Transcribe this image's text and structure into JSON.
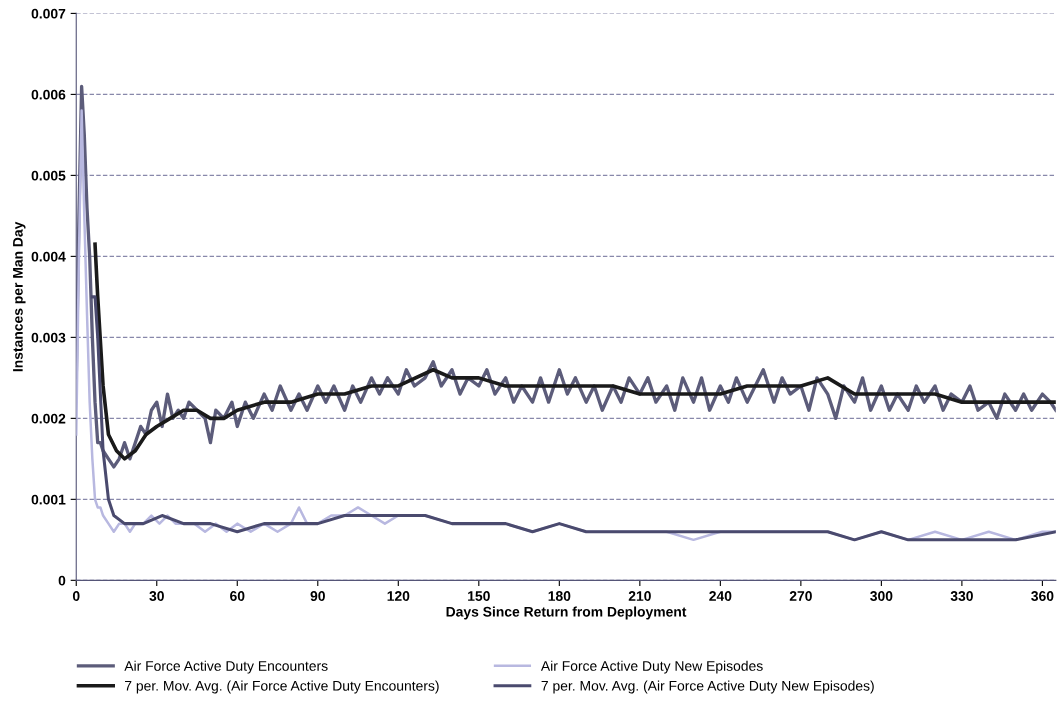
{
  "chart_data": {
    "type": "line",
    "xlabel": "Days Since Return from Deployment",
    "ylabel": "Instances per Man Day",
    "xlim": [
      0,
      365
    ],
    "xticks": [
      0,
      30,
      60,
      90,
      120,
      150,
      180,
      210,
      240,
      270,
      300,
      330,
      360
    ],
    "ylim": [
      0,
      0.007
    ],
    "yticks": [
      0,
      0.001,
      0.002,
      0.003,
      0.004,
      0.005,
      0.006,
      0.007
    ],
    "grid": "y",
    "legend": "bottom",
    "marker": "none",
    "line_style": "solid",
    "series": [
      {
        "name": "Air Force Active Duty Encounters",
        "color": "#5c5c7a",
        "x": [
          0,
          1,
          2,
          3,
          4,
          5,
          6,
          7,
          8,
          9,
          10,
          12,
          14,
          16,
          18,
          20,
          22,
          24,
          26,
          28,
          30,
          32,
          34,
          36,
          38,
          40,
          42,
          45,
          48,
          50,
          52,
          55,
          58,
          60,
          63,
          66,
          70,
          73,
          76,
          80,
          83,
          86,
          90,
          93,
          96,
          100,
          103,
          106,
          110,
          113,
          116,
          120,
          123,
          126,
          130,
          133,
          136,
          140,
          143,
          146,
          150,
          153,
          156,
          160,
          163,
          166,
          170,
          173,
          176,
          180,
          183,
          186,
          190,
          193,
          196,
          200,
          203,
          206,
          210,
          213,
          216,
          220,
          223,
          226,
          230,
          233,
          236,
          240,
          243,
          246,
          250,
          253,
          256,
          260,
          263,
          266,
          270,
          273,
          276,
          280,
          283,
          286,
          290,
          293,
          296,
          300,
          303,
          306,
          310,
          313,
          316,
          320,
          323,
          326,
          330,
          333,
          336,
          340,
          343,
          346,
          350,
          353,
          356,
          360,
          363,
          365
        ],
        "values": [
          0.0025,
          0.0045,
          0.0061,
          0.0055,
          0.0046,
          0.004,
          0.003,
          0.0022,
          0.0017,
          0.0017,
          0.0016,
          0.0015,
          0.0014,
          0.0015,
          0.0017,
          0.0015,
          0.0017,
          0.0019,
          0.0018,
          0.0021,
          0.0022,
          0.0019,
          0.0023,
          0.002,
          0.0021,
          0.002,
          0.0022,
          0.0021,
          0.002,
          0.0017,
          0.0021,
          0.002,
          0.0022,
          0.0019,
          0.0022,
          0.002,
          0.0023,
          0.0021,
          0.0024,
          0.0021,
          0.0023,
          0.0021,
          0.0024,
          0.0022,
          0.0024,
          0.0021,
          0.0024,
          0.0022,
          0.0025,
          0.0023,
          0.0025,
          0.0023,
          0.0026,
          0.0024,
          0.0025,
          0.0027,
          0.0024,
          0.0026,
          0.0023,
          0.0025,
          0.0024,
          0.0026,
          0.0023,
          0.0025,
          0.0022,
          0.0024,
          0.0022,
          0.0025,
          0.0022,
          0.0026,
          0.0023,
          0.0025,
          0.0022,
          0.0024,
          0.0021,
          0.0024,
          0.0022,
          0.0025,
          0.0023,
          0.0025,
          0.0022,
          0.0024,
          0.0021,
          0.0025,
          0.0022,
          0.0025,
          0.0021,
          0.0024,
          0.0022,
          0.0025,
          0.0022,
          0.0024,
          0.0026,
          0.0022,
          0.0025,
          0.0023,
          0.0024,
          0.0021,
          0.0025,
          0.0023,
          0.002,
          0.0024,
          0.0022,
          0.0025,
          0.0021,
          0.0024,
          0.0021,
          0.0023,
          0.0021,
          0.0024,
          0.0022,
          0.0024,
          0.0021,
          0.0023,
          0.0022,
          0.0024,
          0.0021,
          0.0022,
          0.002,
          0.0023,
          0.0021,
          0.0023,
          0.0021,
          0.0023,
          0.0022,
          0.0021
        ]
      },
      {
        "name": "Air Force Active Duty New Episodes",
        "color": "#b8b8e0",
        "x": [
          0,
          1,
          2,
          3,
          4,
          5,
          6,
          7,
          8,
          9,
          10,
          12,
          14,
          16,
          18,
          20,
          22,
          25,
          28,
          31,
          34,
          37,
          40,
          44,
          48,
          52,
          56,
          60,
          65,
          70,
          75,
          80,
          83,
          86,
          90,
          95,
          100,
          105,
          110,
          115,
          120,
          130,
          140,
          150,
          160,
          170,
          180,
          190,
          200,
          210,
          220,
          230,
          240,
          250,
          260,
          270,
          280,
          290,
          300,
          310,
          320,
          330,
          340,
          350,
          360,
          365
        ],
        "values": [
          0.0018,
          0.004,
          0.0058,
          0.0045,
          0.0033,
          0.0022,
          0.0015,
          0.001,
          0.0009,
          0.0009,
          0.0008,
          0.0007,
          0.0006,
          0.0007,
          0.0007,
          0.0006,
          0.0007,
          0.0007,
          0.0008,
          0.0007,
          0.0008,
          0.0007,
          0.0007,
          0.0007,
          0.0006,
          0.0007,
          0.0006,
          0.0007,
          0.0006,
          0.0007,
          0.0006,
          0.0007,
          0.0009,
          0.0007,
          0.0007,
          0.0008,
          0.0008,
          0.0009,
          0.0008,
          0.0007,
          0.0008,
          0.0008,
          0.0007,
          0.0007,
          0.0007,
          0.0006,
          0.0007,
          0.0006,
          0.0006,
          0.0006,
          0.0006,
          0.0005,
          0.0006,
          0.0006,
          0.0006,
          0.0006,
          0.0006,
          0.0005,
          0.0006,
          0.0005,
          0.0006,
          0.0005,
          0.0006,
          0.0005,
          0.0006,
          0.0006
        ]
      },
      {
        "name": "7 per. Mov. Avg. (Air Force Active Duty Encounters)",
        "color": "#1a1a1a",
        "x": [
          7,
          8,
          10,
          12,
          15,
          18,
          22,
          26,
          30,
          35,
          40,
          45,
          50,
          55,
          60,
          70,
          80,
          90,
          100,
          110,
          120,
          133,
          140,
          150,
          160,
          170,
          180,
          190,
          200,
          210,
          220,
          230,
          240,
          250,
          260,
          270,
          280,
          290,
          300,
          310,
          320,
          330,
          340,
          350,
          360,
          365
        ],
        "values": [
          0.00415,
          0.0035,
          0.0024,
          0.0018,
          0.0016,
          0.0015,
          0.0016,
          0.0018,
          0.0019,
          0.002,
          0.0021,
          0.0021,
          0.002,
          0.002,
          0.0021,
          0.0022,
          0.0022,
          0.0023,
          0.0023,
          0.0024,
          0.0024,
          0.0026,
          0.0025,
          0.0025,
          0.0024,
          0.0024,
          0.0024,
          0.0024,
          0.0024,
          0.0023,
          0.0023,
          0.0023,
          0.0023,
          0.0024,
          0.0024,
          0.0024,
          0.0025,
          0.0023,
          0.0023,
          0.0023,
          0.0023,
          0.0022,
          0.0022,
          0.0022,
          0.0022,
          0.0022
        ]
      },
      {
        "name": "7 per. Mov. Avg. (Air Force Active Duty New Episodes)",
        "color": "#4a4a6e",
        "x": [
          6,
          7,
          8,
          10,
          12,
          14,
          18,
          25,
          32,
          40,
          50,
          60,
          70,
          80,
          90,
          100,
          110,
          120,
          130,
          140,
          150,
          160,
          170,
          180,
          190,
          200,
          210,
          220,
          230,
          240,
          250,
          260,
          270,
          280,
          290,
          300,
          310,
          320,
          330,
          340,
          350,
          365
        ],
        "values": [
          0.0035,
          0.0035,
          0.003,
          0.0016,
          0.001,
          0.0008,
          0.0007,
          0.0007,
          0.0008,
          0.0007,
          0.0007,
          0.0006,
          0.0007,
          0.0007,
          0.0007,
          0.0008,
          0.0008,
          0.0008,
          0.0008,
          0.0007,
          0.0007,
          0.0007,
          0.0006,
          0.0007,
          0.0006,
          0.0006,
          0.0006,
          0.0006,
          0.0006,
          0.0006,
          0.0006,
          0.0006,
          0.0006,
          0.0006,
          0.0005,
          0.0006,
          0.0005,
          0.0005,
          0.0005,
          0.0005,
          0.0005,
          0.0006
        ]
      }
    ]
  }
}
